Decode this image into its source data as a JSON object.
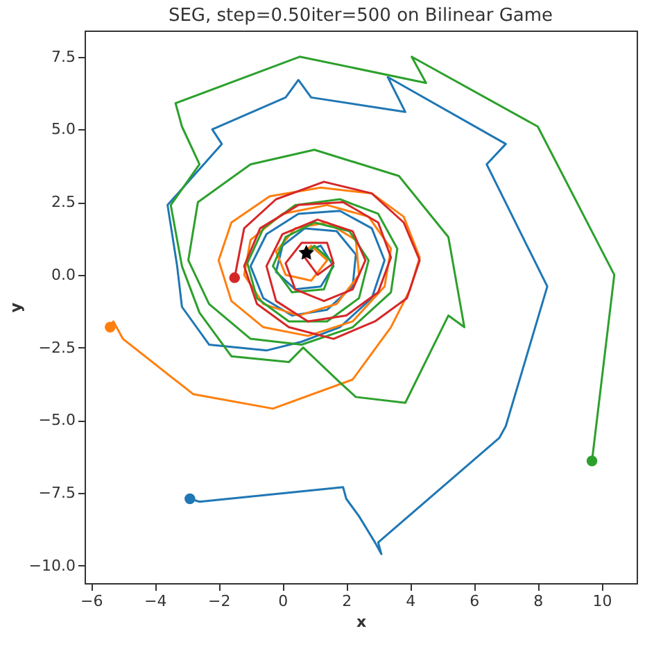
{
  "chart_data": {
    "type": "line",
    "title": "SEG, step=0.50iter=500 on Bilinear Game",
    "xlabel": "x",
    "ylabel": "y",
    "xlim": [
      -6.2,
      11.1
    ],
    "ylim": [
      -10.6,
      8.4
    ],
    "xticks": [
      -6,
      -4,
      -2,
      0,
      2,
      4,
      6,
      8,
      10
    ],
    "yticks": [
      {
        "value": -10,
        "label": "−10.0"
      },
      -7.5,
      {
        "value": -5,
        "label": "−5.0"
      },
      -2.5,
      {
        "value": 0,
        "label": "0.0"
      },
      2.5,
      {
        "value": 5,
        "label": "5.0"
      },
      7.5
    ],
    "grid": false,
    "line_style": "solid",
    "series": [
      {
        "color": "#1f77b4",
        "x": [
          -2.9,
          -2.6,
          1.9,
          2.0,
          2.4,
          2.9,
          3.1,
          3.0,
          6.8,
          7.0,
          8.3,
          6.4,
          7.0,
          3.3,
          3.85,
          0.9,
          0.5,
          0.1,
          -2.2,
          -1.9,
          -3.6,
          -3.3,
          -3.15,
          -2.3,
          -0.5,
          0.6,
          1.8,
          2.8,
          3.2,
          2.8,
          1.8,
          0.5,
          -0.5,
          -1.0,
          -0.6,
          0.3,
          1.4,
          2.2,
          2.3,
          1.7,
          0.7,
          0.0,
          -0.2,
          0.4,
          1.2,
          1.6,
          1.2,
          0.7
        ],
        "values": [
          -7.7,
          -7.8,
          -7.3,
          -7.7,
          -8.3,
          -9.2,
          -9.6,
          -9.2,
          -5.6,
          -5.2,
          -0.4,
          3.8,
          4.5,
          6.8,
          5.6,
          6.1,
          6.7,
          6.1,
          5.0,
          4.5,
          2.4,
          0.3,
          -1.1,
          -2.4,
          -2.6,
          -2.3,
          -1.8,
          -0.8,
          0.5,
          1.6,
          2.2,
          2.1,
          1.4,
          0.3,
          -0.8,
          -1.4,
          -1.2,
          -0.4,
          0.7,
          1.5,
          1.6,
          1.0,
          0.1,
          -0.5,
          -0.4,
          0.3,
          1.0,
          0.8
        ]
      },
      {
        "color": "#ff7f0e",
        "x": [
          -5.4,
          -5.3,
          -5.0,
          -2.8,
          -0.3,
          2.2,
          3.4,
          4.0,
          4.3,
          3.8,
          2.8,
          1.2,
          -0.4,
          -1.6,
          -2.0,
          -1.6,
          -0.6,
          0.8,
          2.2,
          3.2,
          3.4,
          2.7,
          1.4,
          0.0,
          -1.0,
          -1.2,
          -0.6,
          0.5,
          1.7,
          2.4,
          2.3,
          1.4,
          0.4,
          -0.2,
          0.1,
          0.9,
          1.4,
          0.9,
          0.7
        ],
        "values": [
          -1.8,
          -1.6,
          -2.2,
          -4.1,
          -4.6,
          -3.6,
          -1.8,
          -0.5,
          0.6,
          2.0,
          2.8,
          3.0,
          2.7,
          1.8,
          0.5,
          -0.9,
          -1.8,
          -2.1,
          -1.6,
          -0.4,
          0.9,
          2.0,
          2.4,
          2.1,
          1.2,
          0.0,
          -1.0,
          -1.4,
          -1.0,
          0.0,
          1.2,
          1.8,
          1.6,
          0.8,
          0.0,
          -0.2,
          0.5,
          1.0,
          0.8
        ]
      },
      {
        "color": "#2ca02c",
        "x": [
          9.7,
          10.4,
          8.0,
          4.05,
          4.5,
          0.55,
          -3.35,
          -3.15,
          -2.6,
          -3.5,
          -3.15,
          -2.6,
          -1.6,
          0.2,
          0.65,
          1.8,
          2.3,
          3.85,
          5.2,
          5.7,
          5.2,
          3.65,
          1.0,
          -1.0,
          -2.65,
          -2.95,
          -2.3,
          -1.0,
          0.6,
          2.2,
          3.4,
          3.6,
          3.0,
          1.8,
          0.4,
          -0.6,
          -1.1,
          -0.8,
          0.2,
          1.4,
          2.4,
          2.7,
          2.1,
          1.0,
          0.1,
          -0.3,
          0.3,
          1.3,
          1.6,
          1.0,
          0.7
        ],
        "values": [
          -6.4,
          0.0,
          5.1,
          7.5,
          6.6,
          7.5,
          5.9,
          5.1,
          3.8,
          2.4,
          0.3,
          -1.3,
          -2.8,
          -3.0,
          -2.5,
          -3.7,
          -4.2,
          -4.4,
          -1.4,
          -1.8,
          1.3,
          3.4,
          4.3,
          3.8,
          2.5,
          0.5,
          -1.0,
          -2.2,
          -2.4,
          -1.8,
          -0.6,
          0.9,
          2.1,
          2.6,
          2.4,
          1.6,
          0.4,
          -0.8,
          -1.6,
          -1.6,
          -0.8,
          0.5,
          1.5,
          1.8,
          1.3,
          0.3,
          -0.6,
          -0.5,
          0.4,
          1.0,
          0.7
        ]
      },
      {
        "color": "#d62728",
        "x": [
          -1.5,
          -1.2,
          -0.2,
          1.3,
          2.8,
          3.8,
          4.3,
          3.9,
          2.9,
          1.6,
          0.2,
          -0.8,
          -1.2,
          -0.7,
          0.5,
          1.9,
          3.0,
          3.4,
          3.0,
          2.0,
          0.8,
          -0.2,
          -0.5,
          0.0,
          1.1,
          2.2,
          2.6,
          2.2,
          1.3,
          0.4,
          0.1,
          0.6,
          1.4,
          1.6,
          1.1,
          0.7
        ],
        "values": [
          -0.1,
          1.6,
          2.6,
          3.2,
          2.8,
          1.8,
          0.5,
          -0.8,
          -1.6,
          -2.2,
          -1.8,
          -1.0,
          0.3,
          1.6,
          2.4,
          2.5,
          1.8,
          0.6,
          -0.6,
          -1.4,
          -1.6,
          -0.9,
          0.3,
          1.4,
          1.9,
          1.5,
          0.5,
          -0.5,
          -0.9,
          -0.5,
          0.4,
          1.1,
          1.1,
          0.4,
          0.0,
          0.6
        ]
      },
      {
        "type": "scatter",
        "marker": "circle",
        "color": "#1f77b4",
        "x": [
          -2.9
        ],
        "values": [
          -7.7
        ]
      },
      {
        "type": "scatter",
        "marker": "circle",
        "color": "#ff7f0e",
        "x": [
          -5.4
        ],
        "values": [
          -1.8
        ]
      },
      {
        "type": "scatter",
        "marker": "circle",
        "color": "#2ca02c",
        "x": [
          9.7
        ],
        "values": [
          -6.4
        ]
      },
      {
        "type": "scatter",
        "marker": "circle",
        "color": "#d62728",
        "x": [
          -1.5
        ],
        "values": [
          -0.1
        ]
      },
      {
        "type": "scatter",
        "marker": "star",
        "color": "#000000",
        "x": [
          0.75
        ],
        "values": [
          0.75
        ]
      }
    ]
  }
}
